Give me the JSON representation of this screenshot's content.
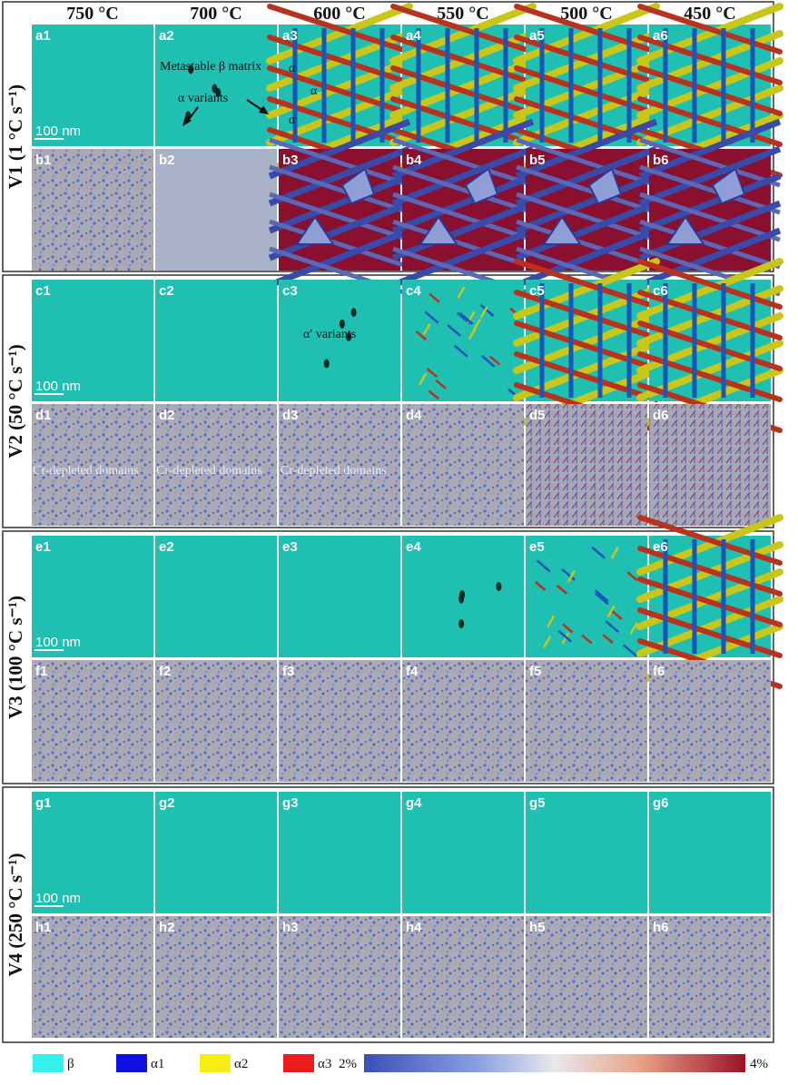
{
  "temperatures": [
    "750 °C",
    "700 °C",
    "600 °C",
    "550 °C",
    "500 °C",
    "450 °C"
  ],
  "groups": [
    {
      "label": "V1 (1 °C s⁻¹)",
      "phase_row": [
        "a1",
        "a2",
        "a3",
        "a4",
        "a5",
        "a6"
      ],
      "comp_row": [
        "b1",
        "b2",
        "b3",
        "b4",
        "b5",
        "b6"
      ],
      "phase_level": [
        0,
        1,
        3,
        3,
        3,
        3
      ],
      "comp_level": [
        0,
        1,
        3,
        3,
        3,
        3
      ]
    },
    {
      "label": "V2 (50 °C s⁻¹)",
      "phase_row": [
        "c1",
        "c2",
        "c3",
        "c4",
        "c5",
        "c6"
      ],
      "comp_row": [
        "d1",
        "d2",
        "d3",
        "d4",
        "d5",
        "d6"
      ],
      "phase_level": [
        0,
        0,
        1,
        2,
        3,
        3
      ],
      "comp_level": [
        0,
        0,
        0,
        0,
        2,
        2
      ]
    },
    {
      "label": "V3 (100 °C s⁻¹)",
      "phase_row": [
        "e1",
        "e2",
        "e3",
        "e4",
        "e5",
        "e6"
      ],
      "comp_row": [
        "f1",
        "f2",
        "f3",
        "f4",
        "f5",
        "f6"
      ],
      "phase_level": [
        0,
        0,
        0,
        1,
        2,
        3
      ],
      "comp_level": [
        0,
        0,
        0,
        0,
        0,
        0
      ]
    },
    {
      "label": "V4 (250 °C s⁻¹)",
      "phase_row": [
        "g1",
        "g2",
        "g3",
        "g4",
        "g5",
        "g6"
      ],
      "comp_row": [
        "h1",
        "h2",
        "h3",
        "h4",
        "h5",
        "h6"
      ],
      "phase_level": [
        0,
        0,
        0,
        0,
        0,
        0
      ],
      "comp_level": [
        0,
        0,
        0,
        0,
        0,
        0
      ]
    }
  ],
  "annotations": {
    "metastable": "Metastable β matrix",
    "alpha_variants": "α variants",
    "alpha": "α",
    "alpha_prime_variants": "α′ variants",
    "cr_depleted": "Cr-depleted domains"
  },
  "scale_bar": "100 nm",
  "legend": {
    "items": [
      {
        "label": "β",
        "color": "#33f2ec"
      },
      {
        "label": "α1",
        "color": "#1010e6"
      },
      {
        "label": "α2",
        "color": "#f5ee10"
      },
      {
        "label": "α3",
        "color": "#ec1c1c"
      }
    ],
    "cbar_min": "2%",
    "cbar_max": "4%"
  },
  "colors": {
    "beta": "#1fbfb1",
    "alpha1": "#1a55b8",
    "alpha2": "#c8c61a",
    "alpha3": "#b8321e",
    "comp_base": "#a9b1c6",
    "comp_high": "#8a1030",
    "comp_low": "#3a4aa8",
    "comp_mid": "#5b68b8"
  }
}
